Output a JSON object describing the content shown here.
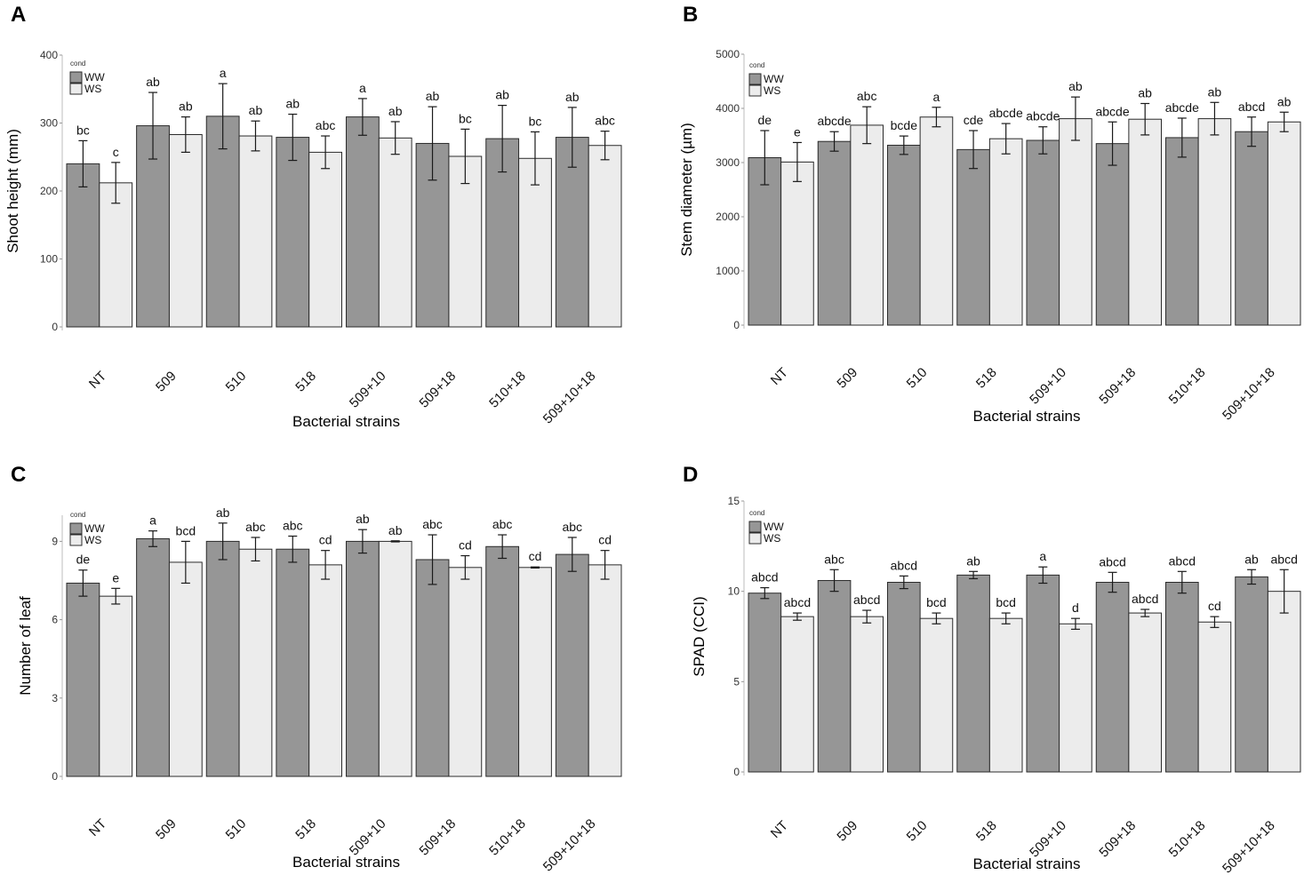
{
  "chart_data": [
    {
      "panel": "A",
      "type": "bar",
      "title": "",
      "xlabel": "Bacterial strains",
      "ylabel": "Shoot height (mm)",
      "ylim": [
        0,
        400
      ],
      "yticks": [
        "0",
        "100",
        "200",
        "300",
        "400"
      ],
      "categories": [
        "NT",
        "509",
        "510",
        "518",
        "509+10",
        "509+18",
        "510+18",
        "509+10+18"
      ],
      "legend": {
        "title": "cond",
        "position": "top-left"
      },
      "series": [
        {
          "name": "WW",
          "color": "#969696",
          "values": [
            240,
            296,
            310,
            279,
            309,
            270,
            277,
            279
          ],
          "errors": [
            34,
            49,
            48,
            34,
            27,
            54,
            49,
            44
          ],
          "labels": [
            "bc",
            "ab",
            "a",
            "ab",
            "a",
            "ab",
            "ab",
            "ab"
          ]
        },
        {
          "name": "WS",
          "color": "#ececec",
          "values": [
            212,
            283,
            281,
            257,
            278,
            251,
            248,
            267
          ],
          "errors": [
            30,
            26,
            22,
            24,
            24,
            40,
            39,
            21
          ],
          "labels": [
            "c",
            "ab",
            "ab",
            "abc",
            "ab",
            "bc",
            "bc",
            "abc"
          ]
        }
      ]
    },
    {
      "panel": "B",
      "type": "bar",
      "title": "",
      "xlabel": "Bacterial strains",
      "ylabel": "Stem diameter (µm)",
      "ylim": [
        0,
        5000
      ],
      "yticks": [
        "0",
        "1000",
        "2000",
        "3000",
        "4000",
        "5000"
      ],
      "categories": [
        "NT",
        "509",
        "510",
        "518",
        "509+10",
        "509+18",
        "510+18",
        "509+10+18"
      ],
      "legend": {
        "title": "cond",
        "position": "top-left"
      },
      "series": [
        {
          "name": "WW",
          "color": "#969696",
          "values": [
            3090,
            3390,
            3320,
            3240,
            3410,
            3350,
            3460,
            3570
          ],
          "errors": [
            500,
            180,
            170,
            350,
            250,
            400,
            360,
            270
          ],
          "labels": [
            "de",
            "abcde",
            "bcde",
            "cde",
            "abcde",
            "abcde",
            "abcde",
            "abcd"
          ]
        },
        {
          "name": "WS",
          "color": "#ececec",
          "values": [
            3010,
            3690,
            3840,
            3440,
            3810,
            3800,
            3810,
            3750
          ],
          "errors": [
            360,
            340,
            180,
            280,
            400,
            290,
            300,
            180
          ],
          "labels": [
            "e",
            "abc",
            "a",
            "abcde",
            "ab",
            "ab",
            "ab",
            "ab"
          ]
        }
      ]
    },
    {
      "panel": "C",
      "type": "bar",
      "title": "",
      "xlabel": "Bacterial strains",
      "ylabel": "Number of leaf",
      "ylim": [
        0,
        10
      ],
      "yticks": [
        "0",
        "3",
        "6",
        "9"
      ],
      "ytick_values": [
        0,
        3,
        6,
        9
      ],
      "categories": [
        "NT",
        "509",
        "510",
        "518",
        "509+10",
        "509+18",
        "510+18",
        "509+10+18"
      ],
      "legend": {
        "title": "cond",
        "position": "top-left"
      },
      "series": [
        {
          "name": "WW",
          "color": "#969696",
          "values": [
            7.4,
            9.1,
            9.0,
            8.7,
            9.0,
            8.3,
            8.8,
            8.5
          ],
          "errors": [
            0.5,
            0.3,
            0.7,
            0.5,
            0.45,
            0.95,
            0.45,
            0.65
          ],
          "labels": [
            "de",
            "a",
            "ab",
            "abc",
            "ab",
            "abc",
            "abc",
            "abc"
          ]
        },
        {
          "name": "WS",
          "color": "#ececec",
          "values": [
            6.9,
            8.2,
            8.7,
            8.1,
            9.0,
            8.0,
            8.0,
            8.1
          ],
          "errors": [
            0.3,
            0.8,
            0.45,
            0.55,
            0.02,
            0.45,
            0.02,
            0.55
          ],
          "labels": [
            "e",
            "bcd",
            "abc",
            "cd",
            "ab",
            "cd",
            "cd",
            "cd"
          ]
        }
      ]
    },
    {
      "panel": "D",
      "type": "bar",
      "title": "",
      "xlabel": "Bacterial strains",
      "ylabel": "SPAD (CCI)",
      "ylim": [
        0,
        15
      ],
      "yticks": [
        "0",
        "5",
        "10",
        "15"
      ],
      "ytick_values": [
        0,
        5,
        10,
        15
      ],
      "categories": [
        "NT",
        "509",
        "510",
        "518",
        "509+10",
        "509+18",
        "510+18",
        "509+10+18"
      ],
      "legend": {
        "title": "cond",
        "position": "top-left"
      },
      "series": [
        {
          "name": "WW",
          "color": "#969696",
          "values": [
            9.9,
            10.6,
            10.5,
            10.9,
            10.9,
            10.5,
            10.5,
            10.8
          ],
          "errors": [
            0.3,
            0.6,
            0.35,
            0.2,
            0.45,
            0.55,
            0.6,
            0.4
          ],
          "labels": [
            "abcd",
            "abc",
            "abcd",
            "ab",
            "a",
            "abcd",
            "abcd",
            "ab"
          ]
        },
        {
          "name": "WS",
          "color": "#ececec",
          "values": [
            8.6,
            8.6,
            8.5,
            8.5,
            8.2,
            8.8,
            8.3,
            10.0
          ],
          "errors": [
            0.2,
            0.35,
            0.3,
            0.3,
            0.3,
            0.2,
            0.3,
            1.2
          ],
          "labels": [
            "abcd",
            "abcd",
            "bcd",
            "bcd",
            "d",
            "abcd",
            "cd",
            "abcd"
          ]
        }
      ]
    }
  ]
}
